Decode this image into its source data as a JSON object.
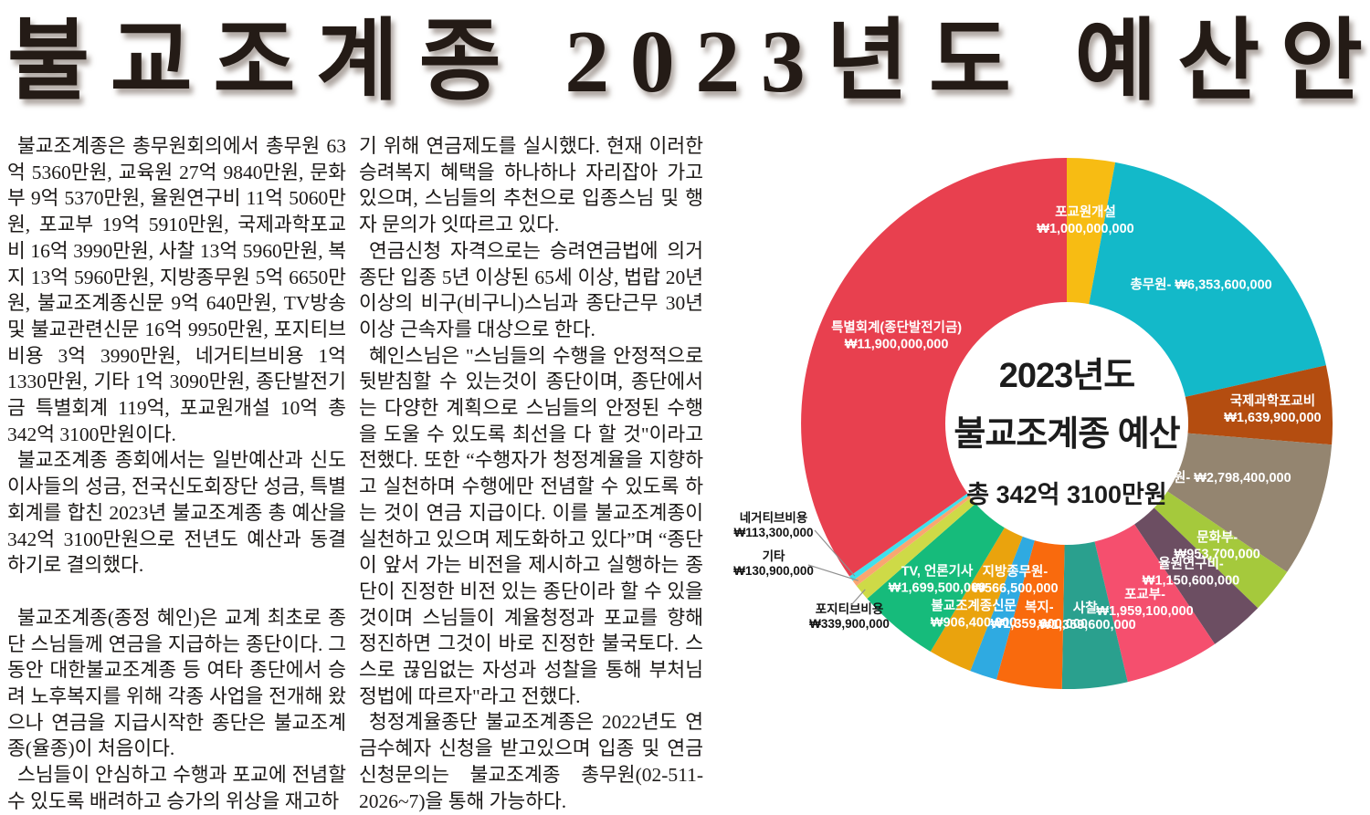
{
  "title": "불교조계종 2023년도 예산안",
  "article": {
    "columns": [
      [
        "불교조계종은 총무원회의에서 총무원 63억 5360만원, 교육원 27억 9840만원, 문화부 9억 5370만원, 율원연구비 11억 5060만원, 포교부 19억 5910만원, 국제과학포교비 16억 3990만원, 사찰 13억 5960만원, 복지 13억 5960만원, 지방종무원 5억 6650만원, 불교조계종신문 9억 640만원, TV방송 및 불교관련신문 16억 9950만원, 포지티브비용 3억 3990만원, 네거티브비용 1억 1330만원, 기타 1억 3090만원, 종단발전기금 특별회계 119억, 포교원개설 10억 총 342억 3100만원이다.",
        "불교조계종 종회에서는 일반예산과 신도이사들의 성금, 전국신도회장단 성금, 특별회계를 합친 2023년 불교조계종 총 예산을 342억 3100만원으로 전년도 예산과 동결하기로 결의했다.",
        "불교조계종(종정 혜인)은 교계 최초로 종단 스님들께 연금을 지급하는 종단이다. 그동안 대한불교조계종 등 여타 종단에서 승려 노후복지를 위해 각종 사업을 전개해 왔으나 연금을 지급시작한 종단은 불교조계종(율종)이 처음이다.",
        "스님들이 안심하고 수행과 포교에 전념할 수 있도록 배려하고 승가의 위상을 재고하"
      ],
      [
        "기 위해 연금제도를 실시했다. 현재 이러한 승려복지 혜택을 하나하나 자리잡아 가고 있으며, 스님들의 추천으로 입종스님 및 행자 문의가 잇따르고 있다.",
        "연금신청 자격으로는 승려연금법에 의거 종단 입종 5년 이상된 65세 이상, 법랍 20년 이상의 비구(비구니)스님과 종단근무 30년 이상 근속자를 대상으로 한다.",
        "혜인스님은 \"스님들의 수행을 안정적으로 뒷받침할 수 있는것이 종단이며, 종단에서는 다양한 계획으로 스님들의 안정된 수행을 도울 수 있도록 최선을 다 할 것\"이라고 전했다. 또한 “수행자가 청정계율을 지향하고 실천하며 수행에만 전념할 수 있도록 하는 것이 연금 지급이다. 이를 불교조계종이 실천하고 있으며 제도화하고 있다”며 “종단이 앞서 가는 비전을 제시하고 실행하는 종단이 진정한 비전 있는 종단이라 할 수 있을 것이며 스님들이 계율청정과 포교를 향해 정진하면 그것이 바로 진정한 불국토다. 스스로 끊임없는 자성과 성찰을 통해 부처님 정법에 따르자\"라고 전했다.",
        "청정계율종단 불교조계종은 2022년도 연금수혜자 신청을 받고있으며 입종 및 연금 신청문의는 불교조계종 총무원(02-511-2026~7)을 통해 가능하다."
      ]
    ]
  },
  "chart_data": {
    "type": "pie",
    "donut": true,
    "start_angle_deg": 0,
    "direction": "clockwise",
    "grid": false,
    "legend_position": "none",
    "center": {
      "title_line1": "2023년도",
      "title_line2": "불교조계종 예산",
      "total": "총 342억 3100만원"
    },
    "total_value": 34231000000,
    "segments": [
      {
        "label": "포교원개설",
        "value": 1000000000,
        "display": "₩1,000,000,000",
        "color": "#F7BC13"
      },
      {
        "label": "총무원-",
        "value": 6353600000,
        "display": "₩6,353,600,000",
        "color": "#13B9C9"
      },
      {
        "label": "국제과학포교비",
        "value": 1639900000,
        "display": "₩1,639,900,000",
        "color": "#B44D10"
      },
      {
        "label": "교육원-",
        "value": 2798400000,
        "display": "₩2,798,400,000",
        "color": "#948570"
      },
      {
        "label": "문화부-",
        "value": 953700000,
        "display": "₩953,700,000",
        "color": "#A5C93C"
      },
      {
        "label": "율원연구비-",
        "value": 1150600000,
        "display": "₩1,150,600,000",
        "color": "#6C4E62"
      },
      {
        "label": "포교부-",
        "value": 1959100000,
        "display": "₩1,959,100,000",
        "color": "#F54F6E"
      },
      {
        "label": "사찰-",
        "value": 1359600000,
        "display": "₩1,359,600,000",
        "color": "#2AA08E"
      },
      {
        "label": "복지-",
        "value": 1359600000,
        "display": "₩1,359,600,000",
        "color": "#F96A0D"
      },
      {
        "label": "지방종무원-",
        "value": 566500000,
        "display": "₩566,500,000",
        "color": "#2FAAE1"
      },
      {
        "label": "불교조계종신문",
        "value": 906400000,
        "display": "₩906,400,000",
        "color": "#EAA30D"
      },
      {
        "label": "TV, 언론기사",
        "value": 1699500000,
        "display": "₩1,699,500,000",
        "color": "#16BB7B"
      },
      {
        "label": "포지티브비용",
        "value": 339900000,
        "display": "₩339,900,000",
        "color": "#CEDA47"
      },
      {
        "label": "기타",
        "value": 130900000,
        "display": "₩130,900,000",
        "color": "#F9A671"
      },
      {
        "label": "네거티브비용",
        "value": 113300000,
        "display": "₩113,300,000",
        "color": "#3FE0EC"
      },
      {
        "label": "특별회계(종단발전기금)",
        "value": 11900000000,
        "display": "₩11,900,000,000",
        "color": "#E8404F"
      }
    ]
  }
}
